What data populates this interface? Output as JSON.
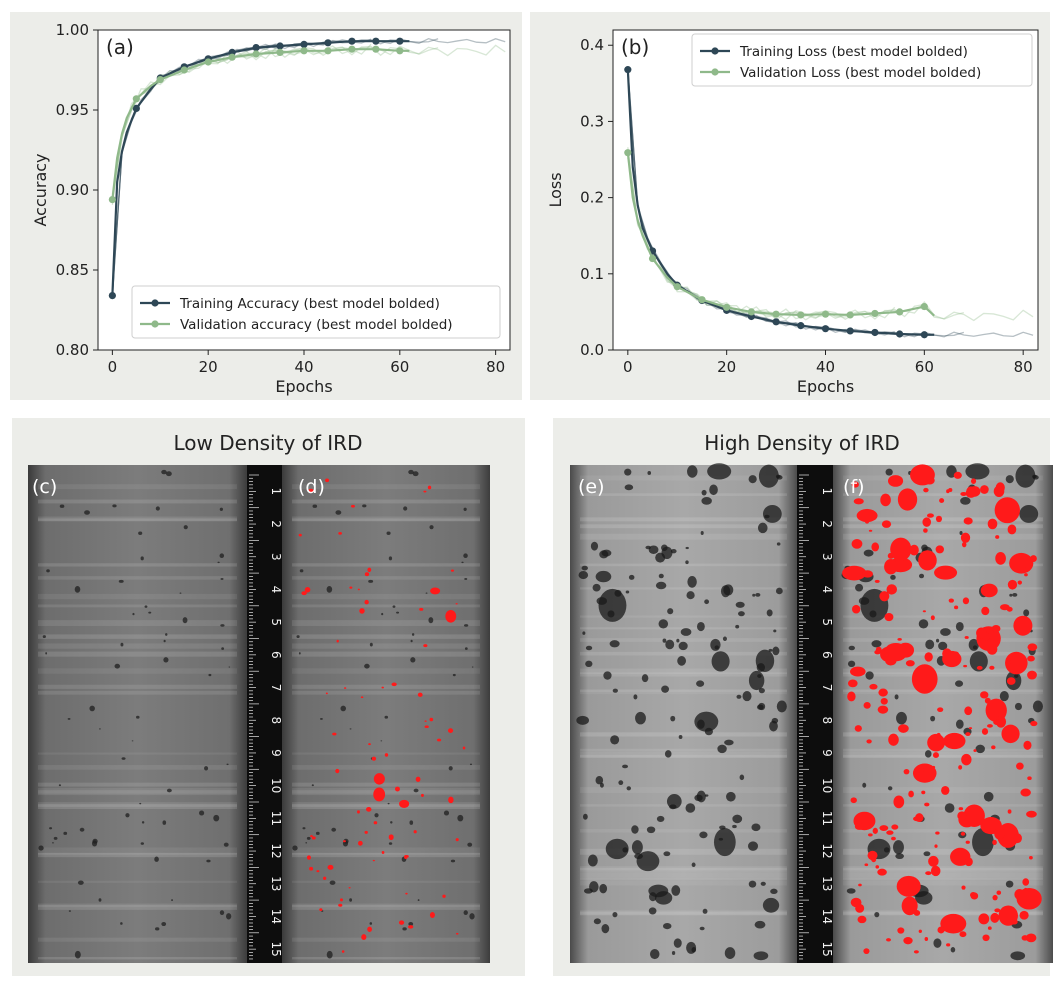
{
  "chart_data": [
    {
      "type": "line",
      "panel_label": "(a)",
      "xlabel": "Epochs",
      "ylabel": "Accuracy",
      "xlim": [
        -3,
        83
      ],
      "ylim": [
        0.8,
        1.0
      ],
      "xticks": [
        "0",
        "20",
        "40",
        "60",
        "80"
      ],
      "yticks": [
        "0.80",
        "0.85",
        "0.90",
        "0.95",
        "1.00"
      ],
      "legend_position": "bottom-right",
      "grid": false,
      "series": [
        {
          "name": "Training Accuracy (best model bolded)",
          "color": "#2e4756",
          "x": [
            0,
            1,
            2,
            3,
            5,
            8,
            10,
            15,
            20,
            25,
            30,
            35,
            40,
            45,
            50,
            55,
            60,
            62
          ],
          "y": [
            0.834,
            0.905,
            0.924,
            0.936,
            0.951,
            0.963,
            0.97,
            0.977,
            0.982,
            0.986,
            0.989,
            0.99,
            0.991,
            0.992,
            0.993,
            0.993,
            0.993,
            0.993
          ],
          "marker_x": [
            0,
            5,
            10,
            15,
            20,
            25,
            30,
            35,
            40,
            45,
            50,
            55,
            60
          ]
        },
        {
          "name": "Validation accuracy (best model bolded)",
          "color": "#8fb98a",
          "x": [
            0,
            1,
            2,
            3,
            5,
            8,
            10,
            15,
            20,
            25,
            30,
            35,
            40,
            45,
            50,
            55,
            60,
            62
          ],
          "y": [
            0.894,
            0.92,
            0.935,
            0.945,
            0.957,
            0.965,
            0.969,
            0.975,
            0.98,
            0.983,
            0.985,
            0.986,
            0.987,
            0.987,
            0.988,
            0.988,
            0.987,
            0.987
          ],
          "marker_x": [
            0,
            5,
            10,
            15,
            20,
            25,
            30,
            35,
            40,
            45,
            50,
            55,
            60
          ]
        }
      ]
    },
    {
      "type": "line",
      "panel_label": "(b)",
      "xlabel": "Epochs",
      "ylabel": "Loss",
      "xlim": [
        -3,
        83
      ],
      "ylim": [
        0.0,
        0.42
      ],
      "xticks": [
        "0",
        "20",
        "40",
        "60",
        "80"
      ],
      "yticks": [
        "0.0",
        "0.1",
        "0.2",
        "0.3",
        "0.4"
      ],
      "legend_position": "top-right",
      "grid": false,
      "series": [
        {
          "name": "Training Loss (best model bolded)",
          "color": "#2e4756",
          "x": [
            0,
            1,
            2,
            3,
            5,
            8,
            10,
            15,
            20,
            25,
            30,
            35,
            40,
            45,
            50,
            55,
            60,
            62
          ],
          "y": [
            0.368,
            0.24,
            0.19,
            0.16,
            0.13,
            0.1,
            0.085,
            0.065,
            0.052,
            0.044,
            0.037,
            0.032,
            0.028,
            0.025,
            0.023,
            0.021,
            0.02,
            0.02
          ],
          "marker_x": [
            0,
            5,
            10,
            15,
            20,
            25,
            30,
            35,
            40,
            45,
            50,
            55,
            60
          ]
        },
        {
          "name": "Validation Loss (best model bolded)",
          "color": "#8fb98a",
          "x": [
            0,
            1,
            2,
            3,
            5,
            8,
            10,
            15,
            20,
            25,
            30,
            35,
            40,
            45,
            50,
            55,
            60,
            62
          ],
          "y": [
            0.259,
            0.2,
            0.17,
            0.15,
            0.12,
            0.095,
            0.083,
            0.066,
            0.056,
            0.05,
            0.047,
            0.046,
            0.047,
            0.046,
            0.048,
            0.05,
            0.057,
            0.045
          ],
          "marker_x": [
            0,
            5,
            10,
            15,
            20,
            25,
            30,
            35,
            40,
            45,
            50,
            55,
            60
          ]
        }
      ]
    }
  ],
  "sections": {
    "low_title": "Low Density of IRD",
    "high_title": "High Density of IRD",
    "labels": {
      "c": "(c)",
      "d": "(d)",
      "e": "(e)",
      "f": "(f)"
    },
    "ruler_numbers": [
      "1",
      "2",
      "3",
      "4",
      "5",
      "6",
      "7",
      "8",
      "9",
      "10",
      "11",
      "12",
      "13",
      "14",
      "15"
    ],
    "colors": {
      "ird_highlight": "#ff1a1a",
      "core_gray": "#8a8a8a",
      "panel_bg": "#ecede9"
    }
  }
}
